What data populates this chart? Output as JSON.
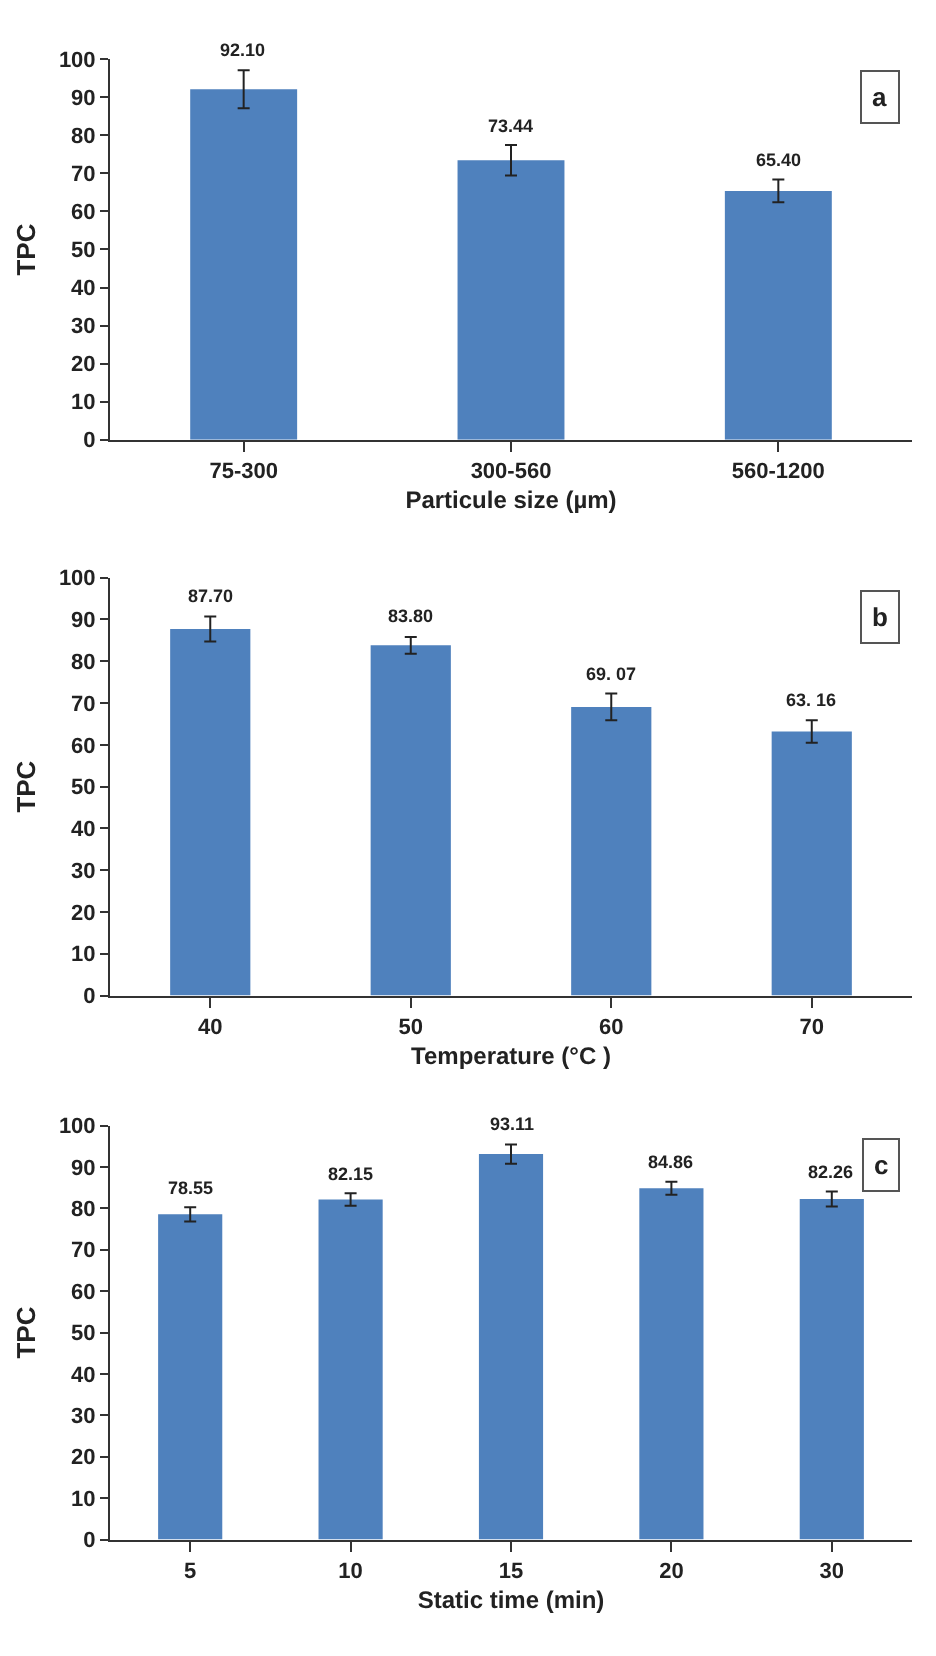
{
  "chart_data": [
    {
      "type": "bar",
      "xlabel": "Particule size (µm)",
      "ylabel": "TPC",
      "annotations": [
        "a"
      ],
      "categories": [
        "75-300",
        "300-560",
        "560-1200"
      ],
      "values": [
        92.1,
        73.44,
        65.4
      ],
      "errors": [
        5,
        4,
        3
      ],
      "value_labels": [
        "92.10",
        "73.44",
        "65.40"
      ],
      "color": "#4f81bd",
      "ylim": [
        0,
        100
      ],
      "yticks": [
        0,
        10,
        20,
        30,
        40,
        50,
        60,
        70,
        80,
        90,
        100
      ]
    },
    {
      "type": "bar",
      "xlabel": "Temperature (°C )",
      "ylabel": "TPC",
      "annotations": [
        "b"
      ],
      "categories": [
        "40",
        "50",
        "60",
        "70"
      ],
      "values": [
        87.7,
        83.8,
        69.07,
        63.16
      ],
      "errors": [
        3,
        2,
        3.2,
        2.7
      ],
      "value_labels": [
        "87.70",
        "83.80",
        "69. 07",
        "63. 16"
      ],
      "color": "#4f81bd",
      "ylim": [
        0,
        100
      ],
      "yticks": [
        0,
        10,
        20,
        30,
        40,
        50,
        60,
        70,
        80,
        90,
        100
      ]
    },
    {
      "type": "bar",
      "xlabel": "Static time (min)",
      "ylabel": "TPC",
      "annotations": [
        "c"
      ],
      "categories": [
        "5",
        "10",
        "15",
        "20",
        "30"
      ],
      "values": [
        78.55,
        82.15,
        93.11,
        84.86,
        82.26
      ],
      "errors": [
        1.7,
        1.5,
        2.3,
        1.6,
        1.8
      ],
      "value_labels": [
        "78.55",
        "82.15",
        "93.11",
        "84.86",
        "82.26"
      ],
      "color": "#4f81bd",
      "ylim": [
        0,
        100
      ],
      "yticks": [
        0,
        10,
        20,
        30,
        40,
        50,
        60,
        70,
        80,
        90,
        100
      ]
    }
  ]
}
